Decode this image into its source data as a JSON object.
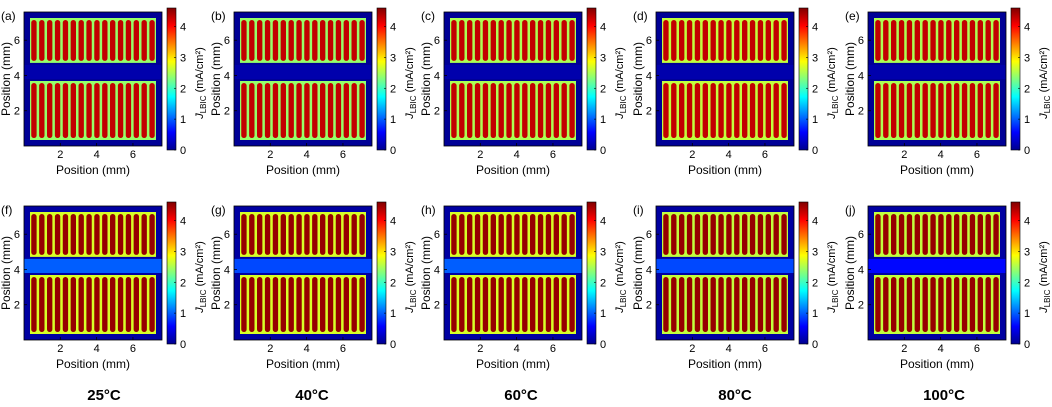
{
  "chart_data": {
    "type": "heatmap",
    "colorbar": {
      "label_symbol": "J",
      "label_subscript": "LBIC",
      "label_units": "(mA/cm²)",
      "ticks": [
        0,
        1,
        2,
        3,
        4
      ],
      "range": [
        0,
        4.6
      ]
    },
    "axes": {
      "xlabel": "Position (mm)",
      "ylabel": "Position (mm)",
      "xticks": [
        2,
        4,
        6
      ],
      "yticks": [
        2,
        4,
        6
      ],
      "xlim": [
        0,
        7.6
      ],
      "ylim": [
        0,
        7.6
      ]
    },
    "device": {
      "fingers_per_half": 16,
      "gap_band_mm": [
        3.8,
        4.6
      ]
    },
    "panels": [
      {
        "label": "(a)",
        "row": 1,
        "temperature": "25°C",
        "finger_current": 4.3,
        "gap_current": 2.4,
        "dark_current": 0.1,
        "gap_band_current": 0.2
      },
      {
        "label": "(b)",
        "row": 1,
        "temperature": "40°C",
        "finger_current": 4.3,
        "gap_current": 2.4,
        "dark_current": 0.1,
        "gap_band_current": 0.2
      },
      {
        "label": "(c)",
        "row": 1,
        "temperature": "60°C",
        "finger_current": 4.3,
        "gap_current": 2.5,
        "dark_current": 0.1,
        "gap_band_current": 0.2
      },
      {
        "label": "(d)",
        "row": 1,
        "temperature": "80°C",
        "finger_current": 4.3,
        "gap_current": 2.6,
        "dark_current": 0.1,
        "gap_band_current": 0.2
      },
      {
        "label": "(e)",
        "row": 1,
        "temperature": "100°C",
        "finger_current": 4.3,
        "gap_current": 2.5,
        "dark_current": 0.1,
        "gap_band_current": 0.2
      },
      {
        "label": "(f)",
        "row": 2,
        "temperature": "25°C",
        "finger_current": 4.5,
        "gap_current": 2.7,
        "dark_current": 0.15,
        "gap_band_current": 1.0
      },
      {
        "label": "(g)",
        "row": 2,
        "temperature": "40°C",
        "finger_current": 4.5,
        "gap_current": 2.7,
        "dark_current": 0.15,
        "gap_band_current": 0.9
      },
      {
        "label": "(h)",
        "row": 2,
        "temperature": "60°C",
        "finger_current": 4.5,
        "gap_current": 2.7,
        "dark_current": 0.15,
        "gap_band_current": 1.0
      },
      {
        "label": "(i)",
        "row": 2,
        "temperature": "80°C",
        "finger_current": 4.5,
        "gap_current": 2.6,
        "dark_current": 0.15,
        "gap_band_current": 0.9
      },
      {
        "label": "(j)",
        "row": 2,
        "temperature": "100°C",
        "finger_current": 4.5,
        "gap_current": 2.6,
        "dark_current": 0.15,
        "gap_band_current": 0.6
      }
    ]
  }
}
